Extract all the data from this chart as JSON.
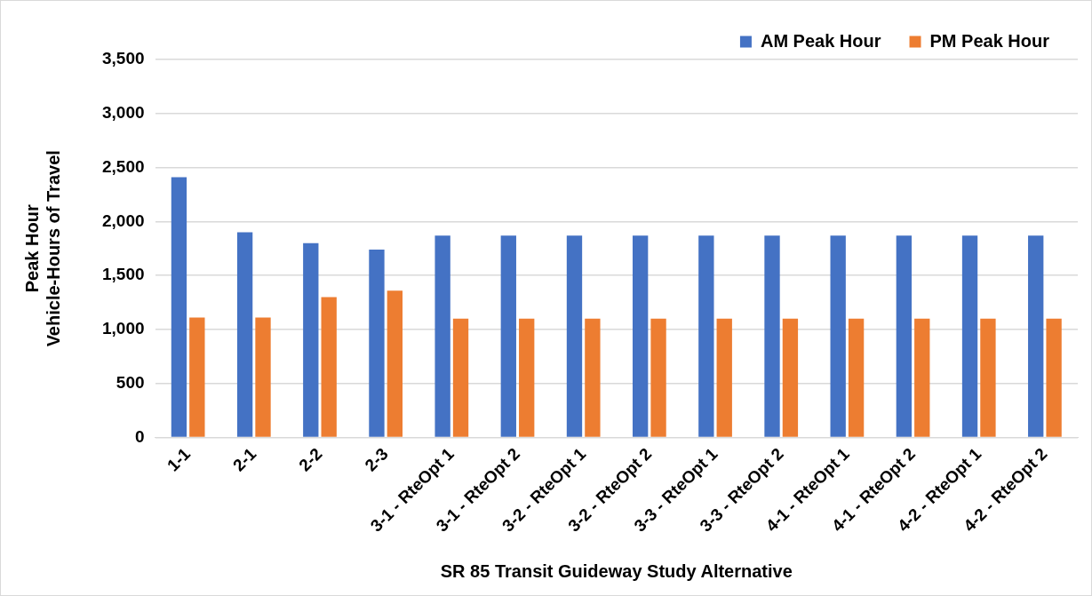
{
  "chart_data": {
    "type": "bar",
    "xlabel": "SR 85 Transit Guideway Study Alternative",
    "ylabel": "Peak Hour\nVehicle-Hours of Travel",
    "categories": [
      "1-1",
      "2-1",
      "2-2",
      "2-3",
      "3-1 - RteOpt 1",
      "3-1 - RteOpt 2",
      "3-2 - RteOpt 1",
      "3-2 - RteOpt 2",
      "3-3 - RteOpt 1",
      "3-3 - RteOpt 2",
      "4-1 - RteOpt 1",
      "4-1 - RteOpt 2",
      "4-2 - RteOpt 1",
      "4-2 - RteOpt 2"
    ],
    "series": [
      {
        "name": "AM Peak Hour",
        "color": "#4472c4",
        "values": [
          2410,
          1900,
          1800,
          1740,
          1870,
          1870,
          1870,
          1870,
          1870,
          1870,
          1870,
          1870,
          1870,
          1870
        ]
      },
      {
        "name": "PM Peak Hour",
        "color": "#ed7d31",
        "values": [
          1110,
          1110,
          1300,
          1360,
          1100,
          1100,
          1100,
          1100,
          1100,
          1100,
          1100,
          1100,
          1100,
          1100
        ]
      }
    ],
    "ylim": [
      0,
      3500
    ],
    "yticks": [
      0,
      500,
      {
        "value": 1000,
        "label": "1,000"
      },
      {
        "value": 1500,
        "label": "1,500"
      },
      {
        "value": 2000,
        "label": "2,000"
      },
      {
        "value": 2500,
        "label": "2,500"
      },
      {
        "value": 3000,
        "label": "3,000"
      },
      {
        "value": 3500,
        "label": "3,500"
      }
    ],
    "grid": "y",
    "legend": "top right"
  }
}
